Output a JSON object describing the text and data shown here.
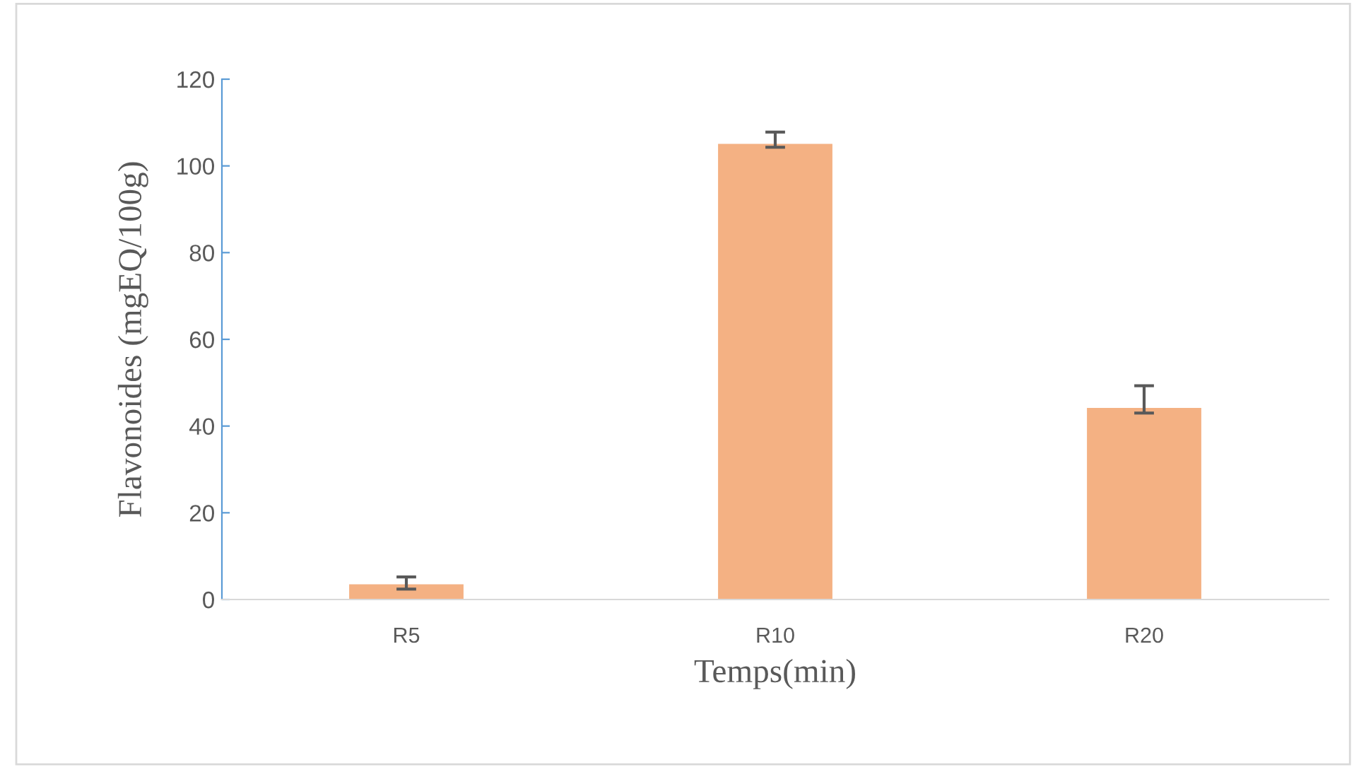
{
  "chart_data": {
    "type": "bar",
    "xlabel": "Temps(min)",
    "ylabel": "Flavonoides (mgEQ/100g)",
    "categories": [
      "R5",
      "R10",
      "R20"
    ],
    "values": [
      3.5,
      105.1,
      44.2
    ],
    "errors": [
      [
        2.4,
        5.2
      ],
      [
        104.3,
        107.8
      ],
      [
        43.0,
        49.3
      ]
    ],
    "color": "#f4b183",
    "ylim": [
      0,
      120
    ],
    "yticks": [
      0,
      20,
      40,
      60,
      80,
      100,
      120
    ],
    "grid": false
  }
}
